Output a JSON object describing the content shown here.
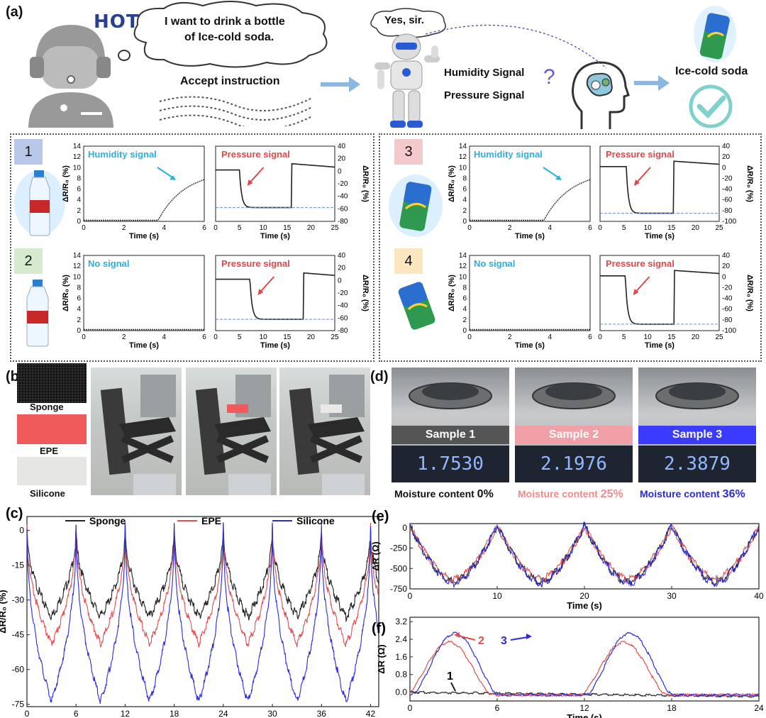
{
  "panel_a": {
    "label": "(a)",
    "hot": "HOT",
    "speech_line1": "I want to drink a bottle",
    "speech_line2": "of Ice-cold soda.",
    "reply": "Yes, sir.",
    "accept": "Accept instruction",
    "humidity_signal": "Humidity Signal",
    "pressure_signal": "Pressure Signal",
    "question": "?",
    "result": "Ice-cold soda",
    "cases": [
      {
        "num": "1",
        "badge_color": "#b9c8e8",
        "left_title": "Humidity signal",
        "right_title": "Pressure signal"
      },
      {
        "num": "2",
        "badge_color": "#d6ead0",
        "left_title": "No signal",
        "right_title": "Pressure signal"
      },
      {
        "num": "3",
        "badge_color": "#f3c9cc",
        "left_title": "Humidity signal",
        "right_title": "Pressure signal"
      },
      {
        "num": "4",
        "badge_color": "#fbe6bf",
        "left_title": "No signal",
        "right_title": "Pressure signal"
      }
    ],
    "axes": {
      "left_ylabel": "ΔR/R₀ (%)",
      "right_ylabel": "ΔR/R₀ (%)",
      "xlabel": "Time (s)",
      "left_xticks": [
        "0",
        "2",
        "4",
        "6"
      ],
      "left_yticks": [
        "0",
        "2",
        "4",
        "6",
        "8",
        "10",
        "12",
        "14"
      ],
      "right_xticks": [
        "0",
        "5",
        "10",
        "15",
        "20",
        "25"
      ],
      "right_yticks_a": [
        "40",
        "20",
        "0",
        "-20",
        "-40",
        "-60",
        "-80"
      ],
      "right_yticks_b": [
        "40",
        "20",
        "0",
        "-20",
        "-40",
        "-60",
        "-80",
        "-100"
      ]
    }
  },
  "panel_b": {
    "label": "(b)",
    "materials": [
      "Sponge",
      "EPE",
      "Silicone"
    ]
  },
  "panel_d": {
    "label": "(d)",
    "samples": [
      {
        "name": "Sample 1",
        "reading": "1.7530",
        "color": "#555555"
      },
      {
        "name": "Sample 2",
        "reading": "2.1976",
        "color": "#f2a0a8"
      },
      {
        "name": "Sample 3",
        "reading": "2.3879",
        "color": "#3b3bff"
      }
    ],
    "moisture": [
      {
        "text": "Moisture content ",
        "value": "0%",
        "color": "#111111"
      },
      {
        "text": "Moisture content ",
        "value": "25%",
        "color": "#f08a8a"
      },
      {
        "text": "Moisture content ",
        "value": "36%",
        "color": "#2a2ad0"
      }
    ]
  },
  "chart_data": [
    {
      "type": "line",
      "id": "c",
      "label": "(c)",
      "xlabel": "Time (s)",
      "ylabel": "ΔR/R₀ (%)",
      "xlim": [
        0,
        43
      ],
      "ylim": [
        -76,
        6
      ],
      "xticks": [
        "0",
        "6",
        "12",
        "18",
        "24",
        "30",
        "36",
        "42"
      ],
      "yticks": [
        "0",
        "-15",
        "-30",
        "-45",
        "-60",
        "-75"
      ],
      "period": 6,
      "peak_x0": 6,
      "legend": "top",
      "series": [
        {
          "name": "Sponge",
          "color": "#222222",
          "min": -36,
          "max": 3
        },
        {
          "name": "EPE",
          "color": "#e05050",
          "min": -48,
          "max": 3
        },
        {
          "name": "Silicone",
          "color": "#2b2bd8",
          "min": -73,
          "max": 3
        }
      ]
    },
    {
      "type": "line",
      "id": "e",
      "label": "(e)",
      "xlabel": "Time (s)",
      "ylabel": "ΔR (Ω)",
      "xlim": [
        0,
        40
      ],
      "ylim": [
        -750,
        50
      ],
      "xticks": [
        "0",
        "10",
        "20",
        "30",
        "40"
      ],
      "yticks": [
        "0",
        "-250",
        "-500",
        "-750"
      ],
      "period": 10,
      "series": [
        {
          "name": "1",
          "color": "#222222",
          "min": -640,
          "max": 50
        },
        {
          "name": "2",
          "color": "#e05050",
          "min": -610,
          "max": 40
        },
        {
          "name": "3",
          "color": "#2b2bd8",
          "min": -660,
          "max": 60
        }
      ]
    },
    {
      "type": "line",
      "id": "f",
      "label": "(f)",
      "xlabel": "Time (s)",
      "ylabel": "ΔR (Ω)",
      "xlim": [
        0,
        24
      ],
      "ylim": [
        -0.4,
        3.4
      ],
      "xticks": [
        "0",
        "6",
        "12",
        "18",
        "24"
      ],
      "yticks": [
        "0.0",
        "0.8",
        "1.6",
        "2.4",
        "3.2"
      ],
      "annotations": [
        "1",
        "2",
        "3"
      ],
      "series": [
        {
          "name": "1",
          "color": "#222222"
        },
        {
          "name": "2",
          "color": "#e05050"
        },
        {
          "name": "3",
          "color": "#2b2bd8"
        }
      ]
    }
  ]
}
